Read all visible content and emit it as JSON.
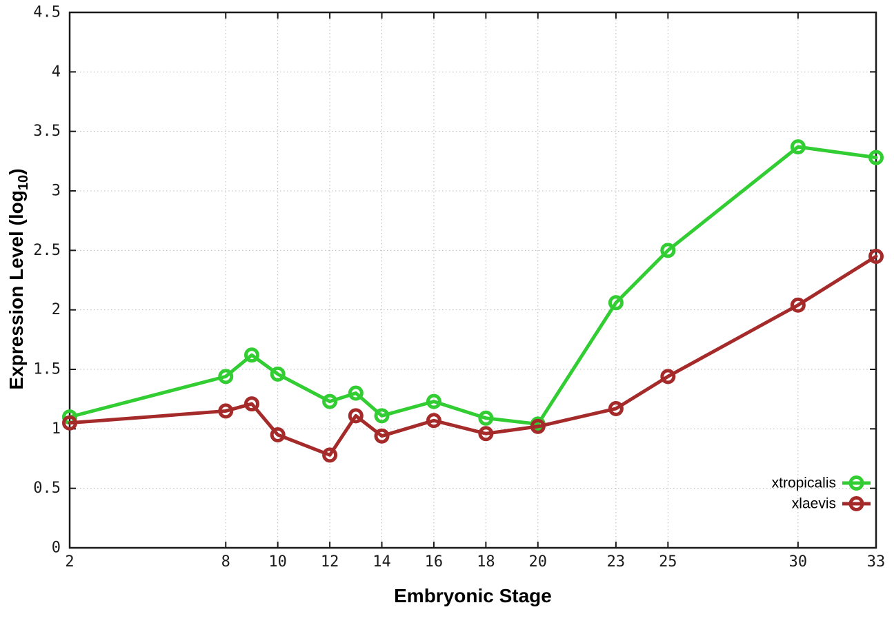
{
  "chart_data": {
    "type": "line",
    "title": "",
    "xlabel": "Embryonic Stage",
    "ylabel": "Expression Level (log10)",
    "ylabel_parts": {
      "prefix": "Expression Level (log",
      "subscript": "10",
      "suffix": ")"
    },
    "x": [
      2,
      8,
      9,
      10,
      12,
      13,
      14,
      16,
      18,
      20,
      23,
      25,
      30,
      33
    ],
    "series": [
      {
        "name": "xtropicalis",
        "color": "#32cd32",
        "values": [
          1.1,
          1.44,
          1.62,
          1.46,
          1.23,
          1.3,
          1.11,
          1.23,
          1.09,
          1.04,
          2.06,
          2.5,
          3.37,
          3.28
        ]
      },
      {
        "name": "xlaevis",
        "color": "#a52a2a",
        "values": [
          1.05,
          1.15,
          1.21,
          0.95,
          0.78,
          1.11,
          0.94,
          1.07,
          0.96,
          1.02,
          1.17,
          1.44,
          2.04,
          2.45
        ]
      }
    ],
    "xticks": {
      "values": [
        2,
        8,
        10,
        12,
        14,
        16,
        18,
        20,
        23,
        25,
        30,
        33
      ],
      "labels": [
        "2",
        "8",
        "10",
        "12",
        "14",
        "16",
        "18",
        "20",
        "23",
        "25",
        "30",
        "33"
      ]
    },
    "yticks": {
      "values": [
        0,
        0.5,
        1,
        1.5,
        2,
        2.5,
        3,
        3.5,
        4,
        4.5
      ],
      "labels": [
        "0",
        "0.5",
        "1",
        "1.5",
        "2",
        "2.5",
        "3",
        "3.5",
        "4",
        "4.5"
      ]
    },
    "xlim": [
      2,
      33
    ],
    "ylim": [
      0,
      4.5
    ],
    "grid": true,
    "legend_position": "bottom-right",
    "legend": [
      "xtropicalis",
      "xlaevis"
    ],
    "marker": "open-circle"
  },
  "colors": {
    "background": "#ffffff",
    "grid": "#b8b8b8",
    "axis": "#1a1a1a",
    "tick_text": "#1a1a1a",
    "legend_text": "#000000"
  }
}
